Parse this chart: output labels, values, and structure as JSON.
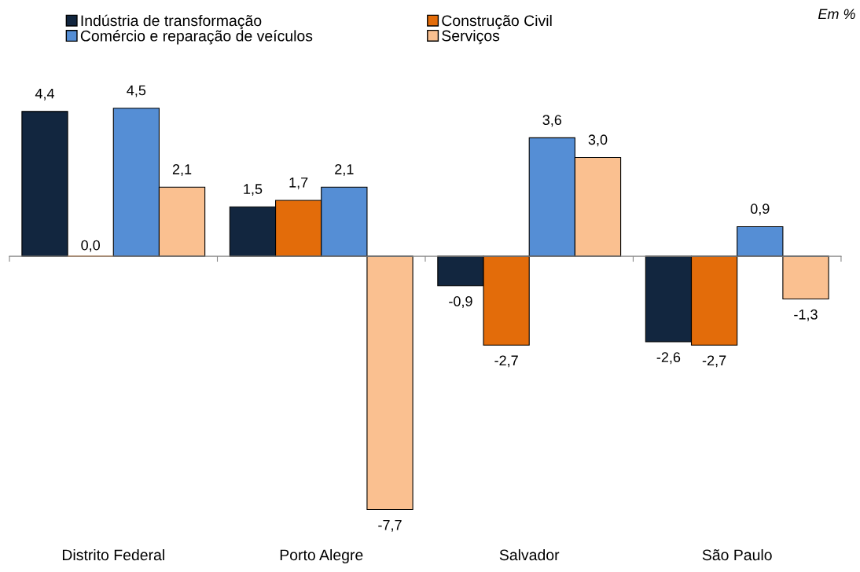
{
  "chart_data": {
    "type": "bar",
    "categories": [
      "Distrito Federal",
      "Porto Alegre",
      "Salvador",
      "São Paulo"
    ],
    "series": [
      {
        "name": "Indústria de transformação",
        "color": "#12263f",
        "values": [
          4.4,
          1.5,
          -0.9,
          -2.6
        ],
        "value_labels": [
          "4,4",
          "1,5",
          "-0,9",
          "-2,6"
        ]
      },
      {
        "name": "Construção Civil",
        "color": "#e36c0a",
        "values": [
          0.0,
          1.7,
          -2.7,
          -2.7
        ],
        "value_labels": [
          "0,0",
          "1,7",
          "-2,7",
          "-2,7"
        ]
      },
      {
        "name": "Comércio e reparação de veículos",
        "color": "#558ed5",
        "values": [
          4.5,
          2.1,
          3.6,
          0.9
        ],
        "value_labels": [
          "4,5",
          "2,1",
          "3,6",
          "0,9"
        ]
      },
      {
        "name": "Serviços",
        "color": "#fac090",
        "values": [
          2.1,
          -7.7,
          3.0,
          -1.3
        ],
        "value_labels": [
          "2,1",
          "-7,7",
          "3,0",
          "-1,3"
        ]
      }
    ],
    "annotations": [
      "Em %"
    ],
    "legend": "top left",
    "grid": false
  }
}
